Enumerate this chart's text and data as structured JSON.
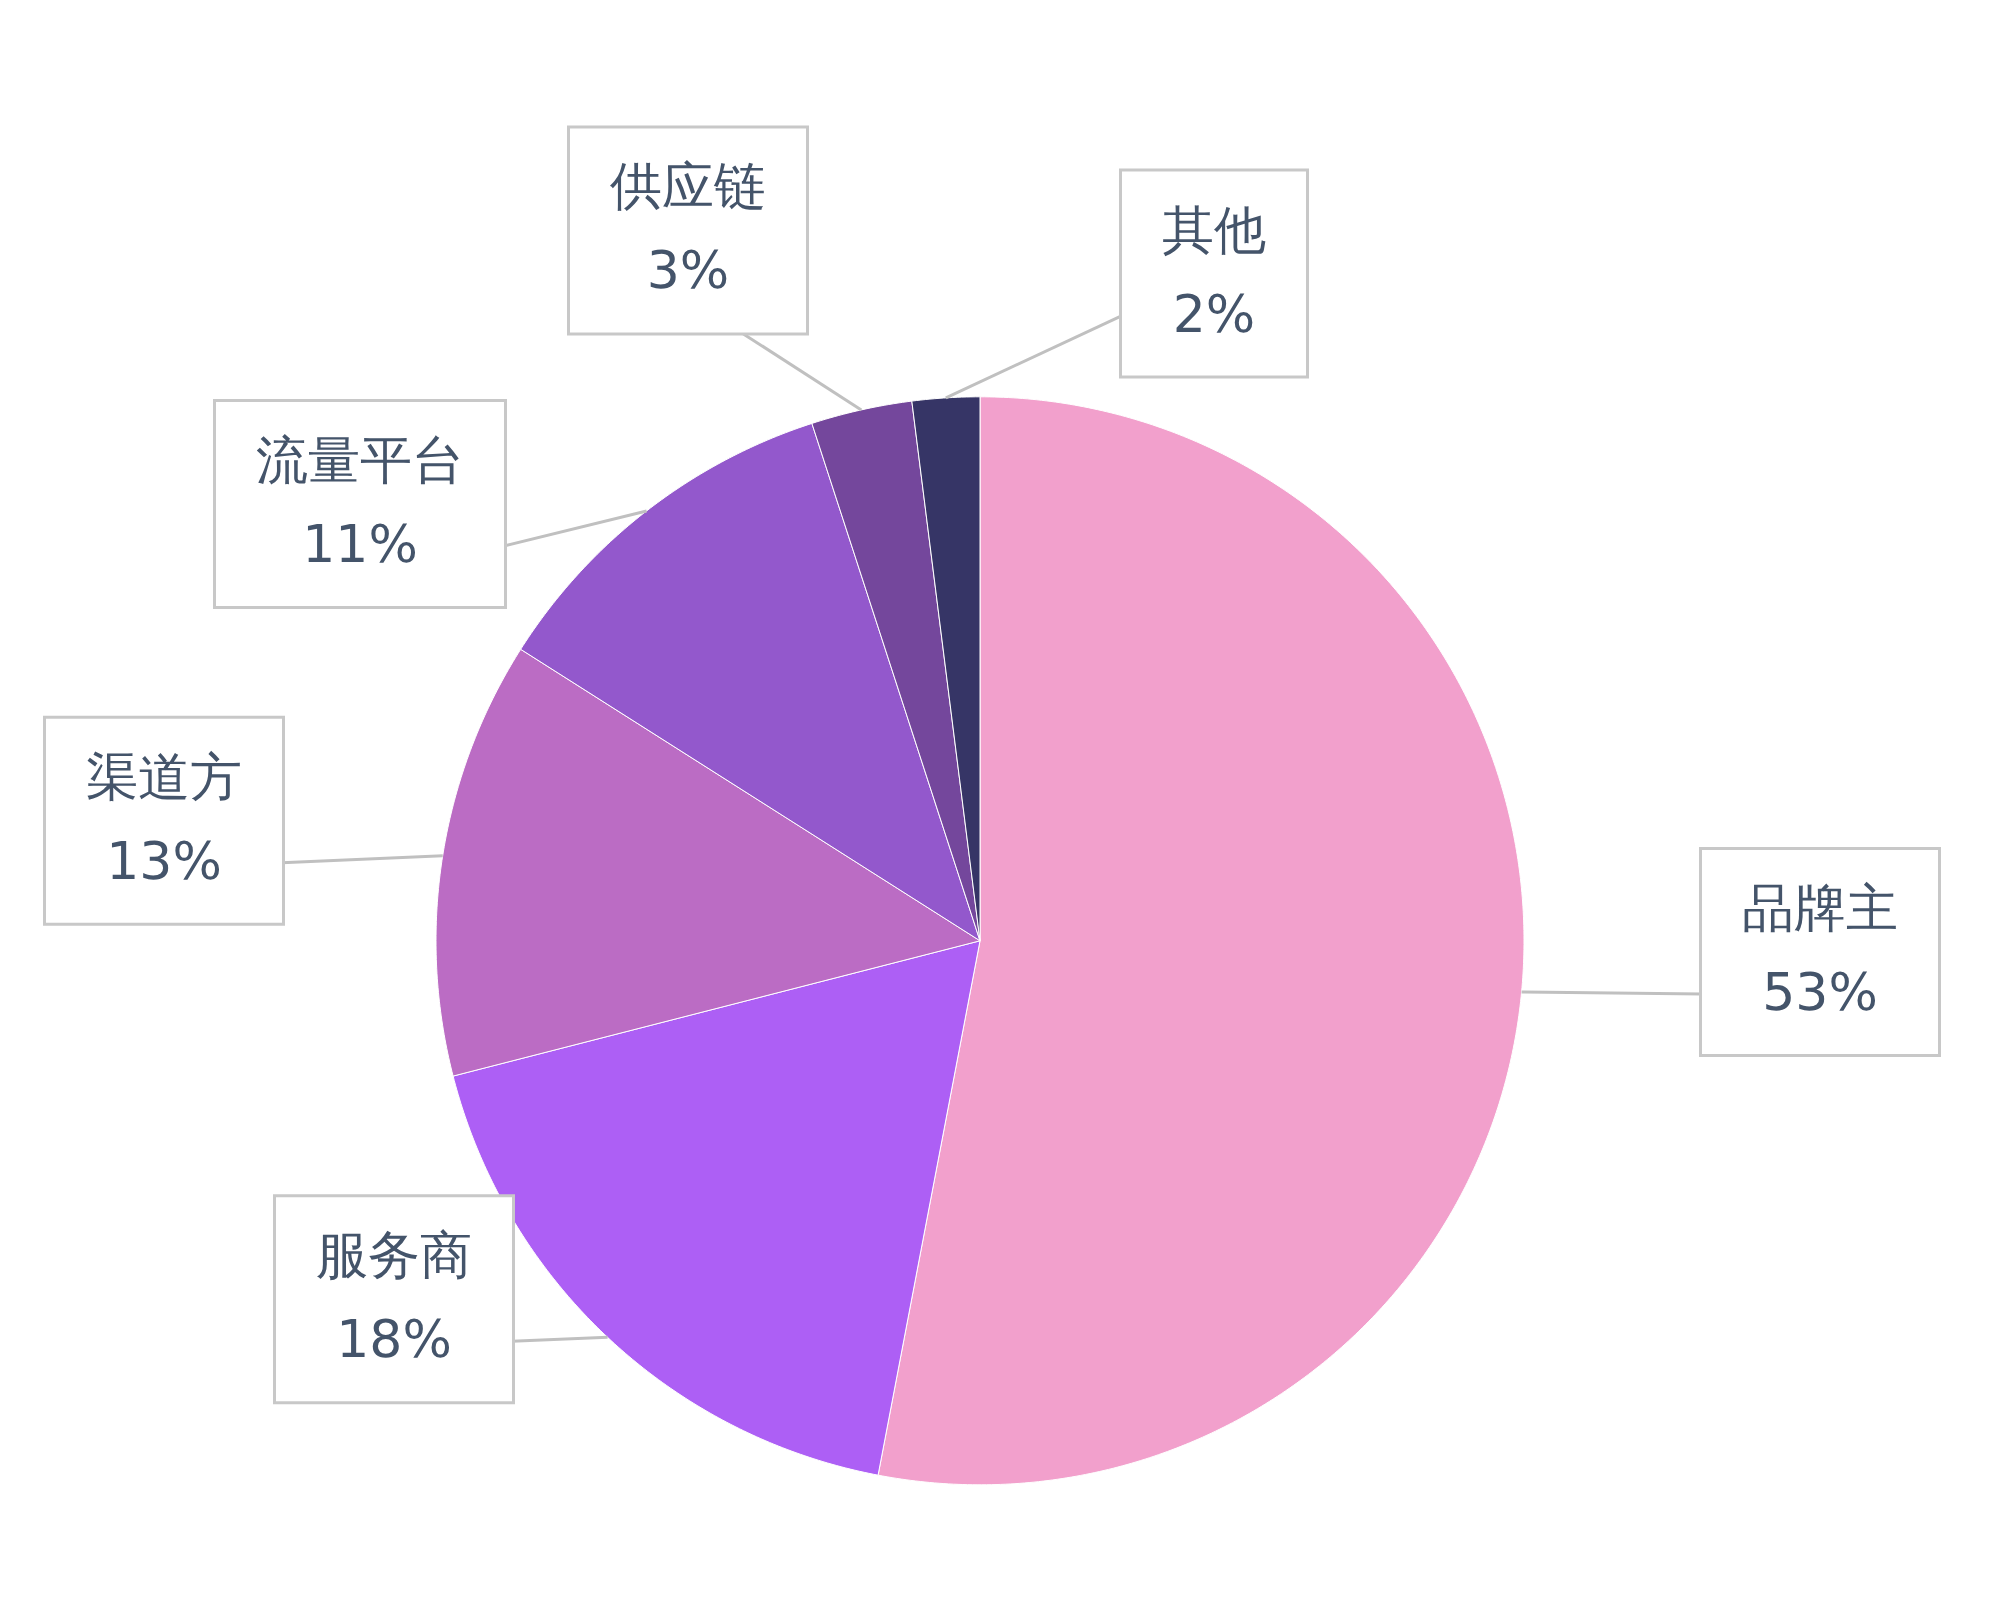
{
  "chart_data": {
    "type": "pie",
    "categories": [
      "品牌主",
      "服务商",
      "渠道方",
      "流量平台",
      "供应链",
      "其他"
    ],
    "values": [
      53,
      18,
      13,
      11,
      3,
      2
    ],
    "value_labels": [
      "53%",
      "18%",
      "13%",
      "11%",
      "3%",
      "2%"
    ],
    "colors": [
      "#f2a0cc",
      "#ad5ff5",
      "#bb6cc4",
      "#9358cc",
      "#74479c",
      "#363566"
    ]
  }
}
